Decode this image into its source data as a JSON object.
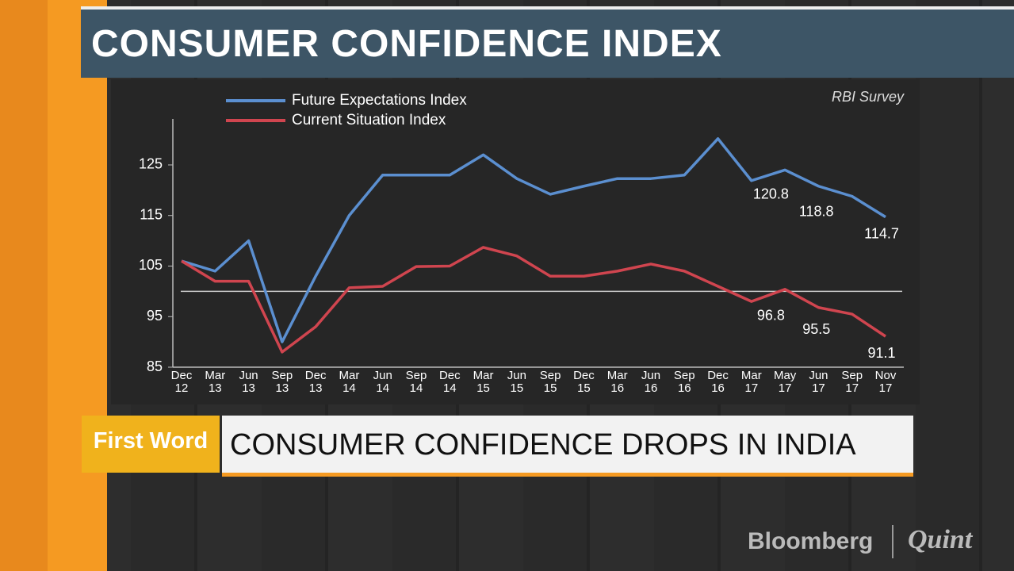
{
  "chart_data": {
    "type": "line",
    "title": "CONSUMER CONFIDENCE INDEX",
    "source": "RBI Survey",
    "categories": [
      "Dec 12",
      "Mar 13",
      "Jun 13",
      "Sep 13",
      "Dec 13",
      "Mar 14",
      "Jun 14",
      "Sep 14",
      "Dec 14",
      "Mar 15",
      "Jun 15",
      "Sep 15",
      "Dec 15",
      "Mar 16",
      "Jun 16",
      "Sep 16",
      "Dec 16",
      "Mar 17",
      "May 17",
      "Jun 17",
      "Sep 17",
      "Nov 17"
    ],
    "series": [
      {
        "name": "Future Expectations Index",
        "color": "#5b8fd0",
        "values": [
          106,
          104,
          110,
          90,
          103,
          115,
          123,
          123,
          123,
          127,
          122.3,
          119.2,
          120.8,
          122.3,
          122.3,
          123,
          130.2,
          121.9,
          124,
          120.8,
          118.8,
          114.7
        ],
        "value_labels": [
          null,
          null,
          null,
          null,
          null,
          null,
          null,
          null,
          null,
          null,
          null,
          null,
          null,
          null,
          null,
          null,
          null,
          null,
          null,
          "120.8",
          "118.8",
          "114.7"
        ]
      },
      {
        "name": "Current Situation Index",
        "color": "#d0454f",
        "values": [
          106,
          102,
          102,
          88,
          93,
          100.7,
          101,
          104.9,
          105,
          108.7,
          107,
          103,
          103,
          104,
          105.4,
          104,
          101,
          98,
          100.4,
          96.8,
          95.5,
          91.1
        ],
        "value_labels": [
          null,
          null,
          null,
          null,
          null,
          null,
          null,
          null,
          null,
          null,
          null,
          null,
          null,
          null,
          null,
          null,
          null,
          null,
          null,
          "96.8",
          "95.5",
          "91.1"
        ]
      }
    ],
    "ylim": [
      85,
      134
    ],
    "yticks": [
      85,
      95,
      105,
      115,
      125
    ],
    "reference_line": 100,
    "grid": false
  },
  "ticker": {
    "tag": "First Word",
    "headline": "CONSUMER CONFIDENCE DROPS IN INDIA"
  },
  "brand": {
    "left": "Bloomberg",
    "right": "Quint"
  }
}
